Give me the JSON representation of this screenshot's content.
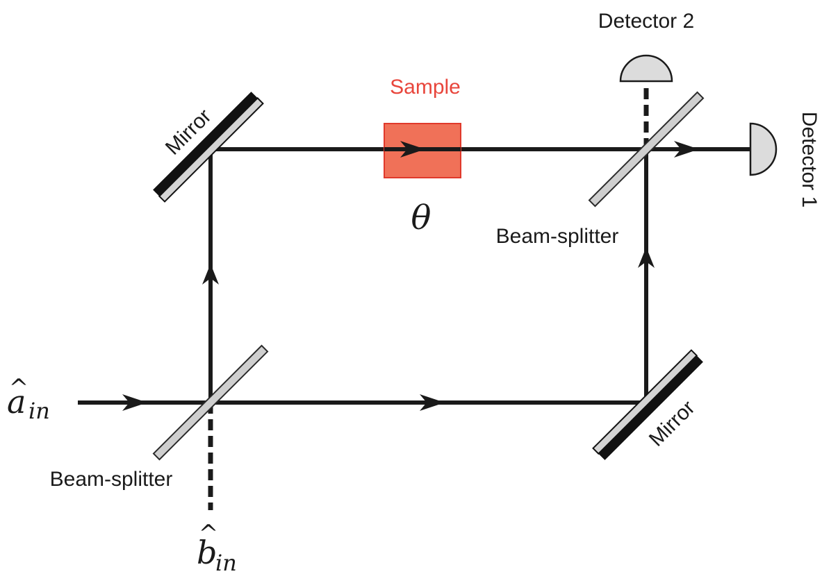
{
  "labels": {
    "sample": "Sample",
    "theta": "θ",
    "mirror_top": "Mirror",
    "mirror_bottom": "Mirror",
    "beam_splitter_top": "Beam-splitter",
    "beam_splitter_bottom": "Beam-splitter",
    "detector_1": "Detector 1",
    "detector_2": "Detector 2",
    "input_a": {
      "hat": "^",
      "base": "a",
      "sub": "in"
    },
    "input_b": {
      "hat": "^",
      "base": "b",
      "sub": "in"
    }
  },
  "colors": {
    "beam": "#1a1a1a",
    "mirror_back": "#111111",
    "mirror_glass": "#d4d4d4",
    "splitter": "#cfcfcf",
    "sample_fill": "#f07158",
    "sample_stroke": "#e0392b",
    "sample_label": "#e8463c",
    "detector_fill": "#dcdcdc"
  }
}
